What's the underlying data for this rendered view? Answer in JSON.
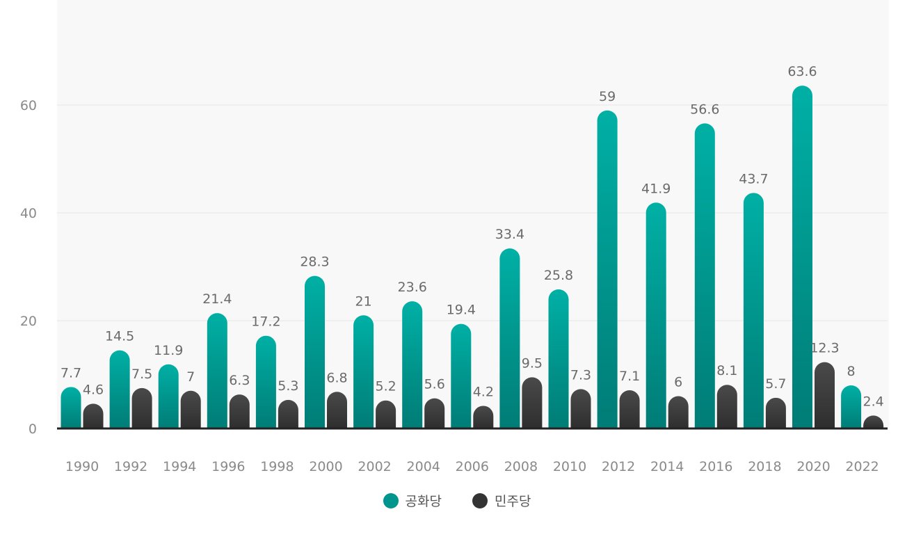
{
  "chart_data": {
    "type": "bar",
    "categories": [
      "1990",
      "1992",
      "1994",
      "1996",
      "1998",
      "2000",
      "2002",
      "2004",
      "2006",
      "2008",
      "2010",
      "2012",
      "2014",
      "2016",
      "2018",
      "2020",
      "2022"
    ],
    "series": [
      {
        "name": "공화당",
        "values": [
          7.7,
          14.5,
          11.9,
          21.4,
          17.2,
          28.3,
          21,
          23.6,
          19.4,
          33.4,
          25.8,
          59,
          41.9,
          56.6,
          43.7,
          63.6,
          8
        ],
        "color": "#00a99d"
      },
      {
        "name": "민주당",
        "values": [
          4.6,
          7.5,
          7,
          6.3,
          5.3,
          6.8,
          5.2,
          5.6,
          4.2,
          9.5,
          7.3,
          7.1,
          6,
          8.1,
          5.7,
          12.3,
          2.4
        ],
        "color": "#3d3d3d"
      }
    ],
    "title": "",
    "xlabel": "",
    "ylabel": "",
    "ylim": [
      0,
      80
    ],
    "yticks": [
      0,
      20,
      40,
      60
    ],
    "grid": true,
    "legend_position": "bottom-center"
  }
}
